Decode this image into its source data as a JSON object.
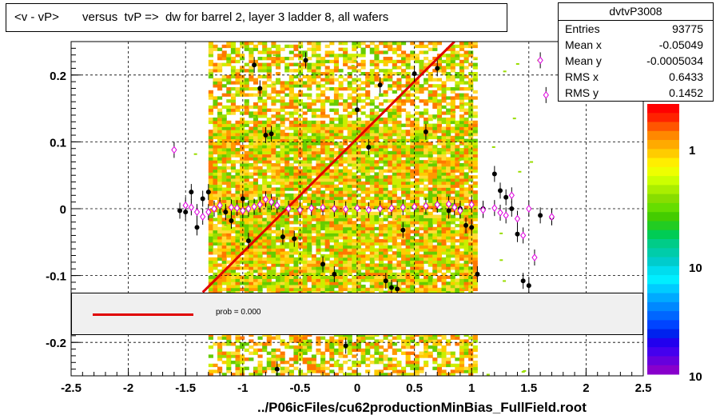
{
  "title": "<v - vP>       versus  tvP =>  dw for barrel 2, layer 3 ladder 8, all wafers",
  "footer": "../P06icFiles/cu62productionMinBias_FullField.root",
  "stats": {
    "name": "dvtvP3008",
    "rows": [
      {
        "key": "Entries",
        "value": "93775"
      },
      {
        "key": "Mean x",
        "value": "-0.05049"
      },
      {
        "key": "Mean y",
        "value": "-0.0005034"
      },
      {
        "key": "RMS x",
        "value": "0.6433"
      },
      {
        "key": "RMS y",
        "value": "0.1452"
      }
    ]
  },
  "legend": {
    "label": "prob = 0.000",
    "line_color": "#e00000"
  },
  "chart_data": {
    "type": "scatter",
    "xlim": [
      -2.5,
      2.5
    ],
    "ylim": [
      -0.25,
      0.25
    ],
    "x_ticks": [
      "-2.5",
      "-2",
      "-1.5",
      "-1",
      "-0.5",
      "0",
      "0.5",
      "1",
      "1.5",
      "2",
      "2.5"
    ],
    "y_ticks": [
      "0.2",
      "0.1",
      "0",
      "-0.1",
      "-0.2"
    ],
    "grid": true,
    "colorbar": {
      "labels": [
        "1",
        "10",
        "10"
      ],
      "log_scale": true
    },
    "histogram_band": {
      "x_range": [
        -1.3,
        1.05
      ]
    },
    "fit_line": {
      "x": [
        -1.35,
        0.85
      ],
      "y": [
        -0.125,
        0.25
      ],
      "color": "#e00000"
    },
    "series": [
      {
        "marker": "filled-circle",
        "color": "#000000",
        "points": [
          [
            -1.55,
            -0.003
          ],
          [
            -1.5,
            -0.005
          ],
          [
            -1.45,
            0.025
          ],
          [
            -1.4,
            -0.028
          ],
          [
            -1.35,
            0.015
          ],
          [
            -1.3,
            0.025
          ],
          [
            -1.15,
            -0.005
          ],
          [
            -1.1,
            -0.018
          ],
          [
            -1.0,
            0.015
          ],
          [
            -0.95,
            -0.048
          ],
          [
            -0.9,
            0.215
          ],
          [
            -0.85,
            0.18
          ],
          [
            -0.8,
            0.11
          ],
          [
            -0.75,
            0.112
          ],
          [
            -0.65,
            -0.042
          ],
          [
            -0.55,
            -0.045
          ],
          [
            -0.45,
            0.222
          ],
          [
            -0.3,
            -0.083
          ],
          [
            -0.2,
            -0.098
          ],
          [
            -0.1,
            -0.205
          ],
          [
            0.0,
            0.148
          ],
          [
            0.1,
            0.092
          ],
          [
            0.2,
            0.185
          ],
          [
            0.25,
            -0.108
          ],
          [
            0.3,
            -0.118
          ],
          [
            0.35,
            -0.12
          ],
          [
            0.4,
            -0.032
          ],
          [
            0.5,
            0.202
          ],
          [
            0.6,
            0.115
          ],
          [
            0.7,
            0.21
          ],
          [
            0.8,
            -0.003
          ],
          [
            0.9,
            0.0
          ],
          [
            0.95,
            -0.025
          ],
          [
            1.0,
            -0.028
          ],
          [
            1.05,
            -0.098
          ],
          [
            1.1,
            0.0
          ],
          [
            1.2,
            0.052
          ],
          [
            1.25,
            0.027
          ],
          [
            1.3,
            0.017
          ],
          [
            1.35,
            0.0
          ],
          [
            1.4,
            -0.038
          ],
          [
            1.45,
            -0.108
          ],
          [
            1.5,
            -0.115
          ],
          [
            1.6,
            -0.01
          ],
          [
            1.7,
            -0.013
          ],
          [
            -0.7,
            -0.24
          ]
        ]
      },
      {
        "marker": "open-diamond",
        "color": "#dd00dd",
        "points": [
          [
            -1.6,
            0.088
          ],
          [
            -1.5,
            0.005
          ],
          [
            -1.45,
            0.002
          ],
          [
            -1.4,
            -0.005
          ],
          [
            -1.35,
            -0.012
          ],
          [
            -1.3,
            -0.005
          ],
          [
            -1.25,
            0.0
          ],
          [
            -1.2,
            0.005
          ],
          [
            -1.1,
            0.002
          ],
          [
            -1.05,
            0.001
          ],
          [
            -1.0,
            -0.003
          ],
          [
            -0.95,
            0.0
          ],
          [
            -0.9,
            0.003
          ],
          [
            -0.85,
            0.006
          ],
          [
            -0.8,
            0.014
          ],
          [
            -0.75,
            0.01
          ],
          [
            -0.7,
            0.005
          ],
          [
            -0.6,
            0.0
          ],
          [
            -0.5,
            -0.002
          ],
          [
            -0.4,
            0.001
          ],
          [
            -0.3,
            0.002
          ],
          [
            -0.2,
            0.0
          ],
          [
            -0.1,
            -0.001
          ],
          [
            0.0,
            0.001
          ],
          [
            0.1,
            -0.002
          ],
          [
            0.2,
            0.0
          ],
          [
            0.3,
            0.001
          ],
          [
            0.4,
            0.002
          ],
          [
            0.5,
            0.003
          ],
          [
            0.6,
            0.004
          ],
          [
            0.7,
            0.006
          ],
          [
            0.8,
            0.007
          ],
          [
            0.85,
            0.002
          ],
          [
            0.9,
            -0.003
          ],
          [
            1.0,
            0.006
          ],
          [
            1.1,
            -0.002
          ],
          [
            1.2,
            0.001
          ],
          [
            1.25,
            -0.006
          ],
          [
            1.3,
            -0.01
          ],
          [
            1.35,
            0.02
          ],
          [
            1.4,
            -0.015
          ],
          [
            1.45,
            -0.04
          ],
          [
            1.5,
            0.0
          ],
          [
            1.55,
            -0.073
          ],
          [
            1.6,
            0.222
          ],
          [
            1.65,
            0.17
          ],
          [
            1.7,
            -0.012
          ]
        ]
      }
    ]
  }
}
